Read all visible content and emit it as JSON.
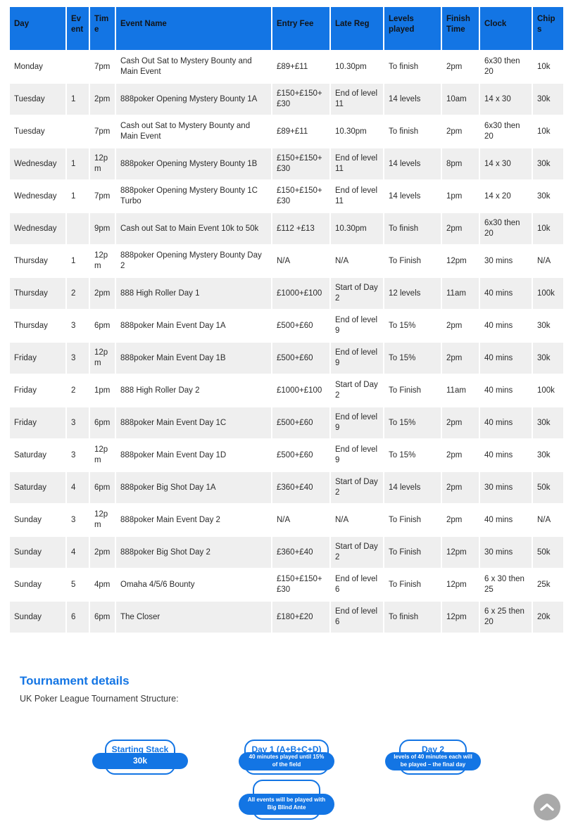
{
  "table": {
    "columns": [
      "Day",
      "Event",
      "Time",
      "Event Name",
      "Entry Fee",
      "Late Reg",
      "Levels played",
      "Finish Time",
      "Clock",
      "Chips"
    ],
    "rows": [
      [
        "Monday",
        "",
        "7pm",
        "Cash Out Sat to Mystery Bounty and Main Event",
        "£89+£11",
        "10.30pm",
        "To finish",
        "2pm",
        "6x30 then 20",
        "10k"
      ],
      [
        "Tuesday",
        "1",
        "2pm",
        "888poker Opening Mystery Bounty 1A",
        "£150+£150+£30",
        "End of level 11",
        "14 levels",
        "10am",
        "14 x 30",
        "30k"
      ],
      [
        "Tuesday",
        "",
        "7pm",
        "Cash out Sat to Mystery Bounty and Main Event",
        "£89+£11",
        "10.30pm",
        "To finish",
        "2pm",
        "6x30 then 20",
        "10k"
      ],
      [
        "Wednesday",
        "1",
        "12pm",
        "888poker Opening Mystery Bounty 1B",
        "£150+£150+£30",
        "End of level 11",
        "14 levels",
        "8pm",
        "14 x 30",
        "30k"
      ],
      [
        "Wednesday",
        "1",
        "7pm",
        "888poker Opening Mystery Bounty 1C Turbo",
        "£150+£150+£30",
        "End of level 11",
        "14 levels",
        "1pm",
        "14 x 20",
        "30k"
      ],
      [
        "Wednesday",
        "",
        "9pm",
        "Cash out Sat to Main Event 10k to 50k",
        "£112 +£13",
        "10.30pm",
        "To finish",
        "2pm",
        "6x30 then 20",
        "10k"
      ],
      [
        "Thursday",
        "1",
        "12pm",
        "888poker Opening Mystery Bounty Day 2",
        "N/A",
        "N/A",
        "To Finish",
        "12pm",
        "30 mins",
        "N/A"
      ],
      [
        "Thursday",
        "2",
        "2pm",
        "888 High Roller Day 1",
        "£1000+£100",
        "Start of Day 2",
        "12 levels",
        "11am",
        "40 mins",
        "100k"
      ],
      [
        "Thursday",
        "3",
        "6pm",
        "888poker Main Event Day 1A",
        "£500+£60",
        "End of level 9",
        "To 15%",
        "2pm",
        "40 mins",
        "30k"
      ],
      [
        "Friday",
        "3",
        "12pm",
        "888poker Main Event Day 1B",
        "£500+£60",
        "End of level 9",
        "To 15%",
        "2pm",
        "40 mins",
        "30k"
      ],
      [
        "Friday",
        "2",
        "1pm",
        "888 High Roller Day 2",
        "£1000+£100",
        "Start of Day 2",
        "To Finish",
        "11am",
        "40 mins",
        "100k"
      ],
      [
        "Friday",
        "3",
        "6pm",
        "888poker Main Event Day 1C",
        "£500+£60",
        "End of level 9",
        "To 15%",
        "2pm",
        "40 mins",
        "30k"
      ],
      [
        "Saturday",
        "3",
        "12pm",
        "888poker Main Event Day 1D",
        "£500+£60",
        "End of level 9",
        "To 15%",
        "2pm",
        "40 mins",
        "30k"
      ],
      [
        "Saturday",
        "4",
        "6pm",
        "888poker Big Shot Day 1A",
        "£360+£40",
        "Start of Day 2",
        "14 levels",
        "2pm",
        "30 mins",
        "50k"
      ],
      [
        "Sunday",
        "3",
        "12pm",
        "888poker Main Event Day 2",
        "N/A",
        "N/A",
        "To Finish",
        "2pm",
        "40 mins",
        "N/A"
      ],
      [
        "Sunday",
        "4",
        "2pm",
        "888poker Big Shot Day 2",
        "£360+£40",
        "Start of Day 2",
        "To Finish",
        "12pm",
        "30 mins",
        "50k"
      ],
      [
        "Sunday",
        "5",
        "4pm",
        "Omaha 4/5/6 Bounty",
        "£150+£150+£30",
        "End of level 6",
        "To Finish",
        "12pm",
        "6 x 30 then 25",
        "25k"
      ],
      [
        "Sunday",
        "6",
        "6pm",
        "The Closer",
        "£180+£20",
        "End of level 6",
        "To finish",
        "12pm",
        "6 x 25 then 20",
        "20k"
      ]
    ]
  },
  "details": {
    "heading": "Tournament details",
    "subheading": "UK Poker League Tournament Structure:",
    "badges": [
      {
        "title": "Starting Stack",
        "pill": "30k"
      },
      {
        "title": "Day 1 (A+B+C+D)",
        "pill": "40 minutes played until 15% of the field"
      },
      {
        "title": "Day 2",
        "pill": "levels of 40 minutes each will be played – the final day"
      },
      {
        "title": "",
        "pill": "All events will be played with Big Blind Ante"
      }
    ]
  },
  "icons": {
    "scroll_top": "chevron-up-icon"
  },
  "colors": {
    "accent": "#1375E4",
    "header_text": "#111418",
    "row_alt": "#EFEFEF",
    "body_text": "#2B2B2B",
    "scroll_button": "#A9A9A9"
  }
}
